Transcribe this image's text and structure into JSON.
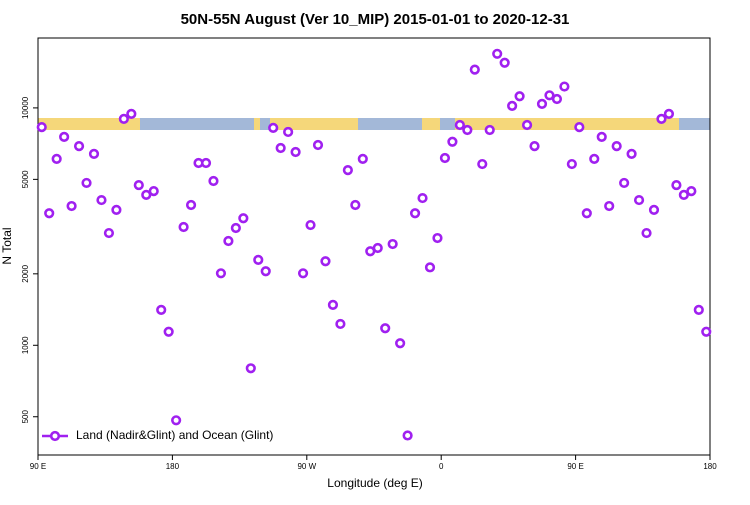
{
  "chart_data": {
    "type": "scatter",
    "title": "50N-55N August (Ver 10_MIP)   2015-01-01 to 2020-12-31",
    "xlabel": "Longitude (deg E)",
    "ylabel": "N Total",
    "ylog": true,
    "legend": "lower left",
    "xlim": [
      90,
      540
    ],
    "xticks": [
      {
        "value": 90,
        "label": "90 E"
      },
      {
        "value": 180,
        "label": "180"
      },
      {
        "value": 270,
        "label": "90 W"
      },
      {
        "value": 360,
        "label": "0"
      },
      {
        "value": 450,
        "label": "90 E"
      },
      {
        "value": 540,
        "label": "180"
      }
    ],
    "ylim": [
      345,
      19700
    ],
    "yticks": [
      500,
      1000,
      2000,
      5000,
      10000
    ],
    "series": [
      {
        "name": "Land (Nadir&Glint) and Ocean (Glint)",
        "color": "#a020f0",
        "x": [
          92.5,
          97.5,
          102.5,
          107.5,
          112.5,
          117.5,
          122.5,
          127.5,
          132.5,
          137.5,
          142.5,
          147.5,
          152.5,
          157.5,
          162.5,
          167.5,
          172.5,
          177.5,
          182.5,
          187.5,
          192.5,
          197.5,
          202.5,
          207.5,
          212.5,
          217.5,
          222.5,
          227.5,
          232.5,
          237.5,
          242.5,
          247.5,
          252.5,
          257.5,
          262.5,
          267.5,
          272.5,
          277.5,
          282.5,
          287.5,
          292.5,
          297.5,
          302.5,
          307.5,
          312.5,
          317.5,
          322.5,
          327.5,
          332.5,
          337.5,
          342.5,
          347.5,
          352.5,
          357.5,
          362.5,
          367.5,
          372.5,
          377.5,
          382.5,
          387.5,
          392.5,
          397.5,
          402.5,
          407.5,
          412.5,
          417.5,
          422.5,
          427.5,
          432.5,
          437.5,
          442.5,
          447.5,
          452.5,
          457.5,
          462.5,
          467.5,
          472.5,
          477.5,
          482.5,
          487.5,
          492.5,
          497.5,
          502.5,
          507.5,
          512.5,
          517.5,
          522.5,
          527.5,
          532.5,
          537.5
        ],
        "values": [
          8300,
          3600,
          6100,
          7550,
          3860,
          6900,
          4830,
          6400,
          4090,
          2970,
          3720,
          8990,
          9440,
          4730,
          4300,
          4460,
          1410,
          1140,
          483,
          3150,
          3900,
          5860,
          5860,
          4920,
          2010,
          2750,
          3120,
          3430,
          800,
          2290,
          2050,
          8240,
          6780,
          7920,
          6520,
          2010,
          3210,
          6980,
          2260,
          1480,
          1230,
          5470,
          3900,
          6100,
          2490,
          2570,
          1180,
          2670,
          1020,
          417,
          3600,
          4170,
          2130,
          2830,
          6150,
          7200,
          8470,
          8070,
          14500,
          5800,
          8070,
          16900,
          15500,
          10200,
          11200,
          8470,
          6900,
          10400,
          11300,
          10900,
          12300,
          5800,
          8300,
          3600,
          6100,
          7550,
          3860,
          6900,
          4830,
          6400,
          4090,
          2970,
          3720,
          8990,
          9440,
          4730,
          4300,
          4460,
          1410,
          1140
        ]
      }
    ]
  }
}
